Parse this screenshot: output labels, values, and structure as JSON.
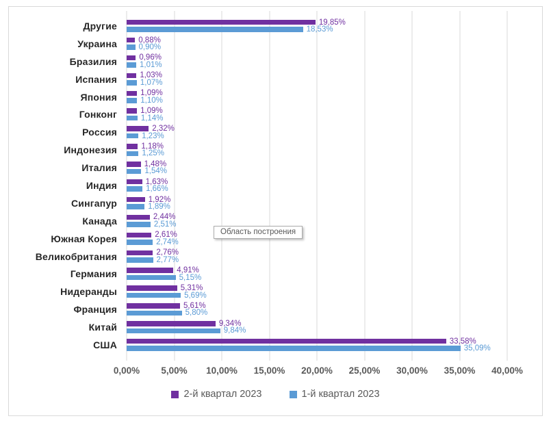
{
  "chart_data": {
    "type": "bar",
    "orientation": "horizontal",
    "title": "",
    "categories": [
      "Другие",
      "Украина",
      "Бразилия",
      "Испания",
      "Япония",
      "Гонконг",
      "Россия",
      "Индонезия",
      "Италия",
      "Индия",
      "Сингапур",
      "Канада",
      "Южная Корея",
      "Великобритания",
      "Германия",
      "Нидеранды",
      "Франция",
      "Китай",
      "США"
    ],
    "series": [
      {
        "name": "2-й квартал 2023",
        "color": "#7030A0",
        "values": [
          19.85,
          0.88,
          0.96,
          1.03,
          1.09,
          1.09,
          2.32,
          1.18,
          1.48,
          1.63,
          1.92,
          2.44,
          2.61,
          2.76,
          4.91,
          5.31,
          5.61,
          9.34,
          33.58
        ],
        "labels": [
          "19,85%",
          "0,88%",
          "0,96%",
          "1,03%",
          "1,09%",
          "1,09%",
          "2,32%",
          "1,18%",
          "1,48%",
          "1,63%",
          "1,92%",
          "2,44%",
          "2,61%",
          "2,76%",
          "4,91%",
          "5,31%",
          "5,61%",
          "9,34%",
          "33,58%"
        ]
      },
      {
        "name": "1-й квартал 2023",
        "color": "#5B9BD5",
        "values": [
          18.53,
          0.9,
          1.01,
          1.07,
          1.1,
          1.14,
          1.23,
          1.25,
          1.54,
          1.66,
          1.89,
          2.51,
          2.74,
          2.77,
          5.15,
          5.69,
          5.8,
          9.84,
          35.09
        ],
        "labels": [
          "18,53%",
          "0,90%",
          "1,01%",
          "1,07%",
          "1,10%",
          "1,14%",
          "1,23%",
          "1,25%",
          "1,54%",
          "1,66%",
          "1,89%",
          "2,51%",
          "2,74%",
          "2,77%",
          "5,15%",
          "5,69%",
          "5,80%",
          "9,84%",
          "35,09%"
        ]
      }
    ],
    "x_ticks": [
      "0,00%",
      "5,00%",
      "10,00%",
      "15,00%",
      "20,00%",
      "25,00%",
      "30,00%",
      "35,00%",
      "40,00%"
    ],
    "xlim": [
      0,
      40
    ],
    "grid": true,
    "legend_position": "bottom"
  },
  "tooltip": {
    "text": "Область построения"
  },
  "colors": {
    "series_q2": "#7030A0",
    "series_q1": "#5B9BD5",
    "gridline": "#D9D9D9",
    "frame_border": "#D9D9D9",
    "axis_text": "#595959",
    "category_text": "#262626",
    "tooltip_border": "#ABABAB"
  }
}
